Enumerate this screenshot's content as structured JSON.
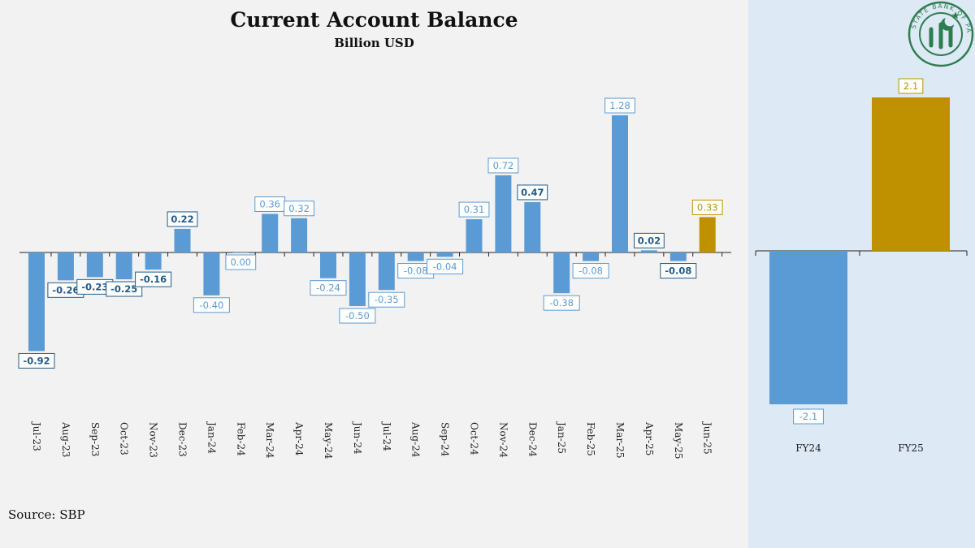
{
  "title": "Current Account Balance",
  "subtitle": "Billion USD",
  "source": "Source: SBP",
  "logo": {
    "name": "state-bank-of-pakistan-logo",
    "text": "STATE BANK OF PAKISTAN",
    "color": "#2e7d4f"
  },
  "colors": {
    "monthly_bar": "#5b9bd5",
    "highlight_bar": "#bf9000",
    "label_text": "#5b9bd5",
    "label_text_dark": "#1f5a8a",
    "axis": "#222222",
    "side_background": "#dde9f5"
  },
  "chart_data": [
    {
      "type": "bar",
      "title": "Current Account Balance",
      "subtitle": "Billion USD",
      "xlabel": "",
      "ylabel": "",
      "grid": false,
      "categories": [
        "Jul-23",
        "Aug-23",
        "Sep-23",
        "Oct-23",
        "Nov-23",
        "Dec-23",
        "Jan-24",
        "Feb-24",
        "Mar-24",
        "Apr-24",
        "May-24",
        "Jun-24",
        "Jul-24",
        "Aug-24",
        "Sep-24",
        "Oct-24",
        "Nov-24",
        "Dec-24",
        "Jan-25",
        "Feb-25",
        "Mar-25",
        "Apr-25",
        "May-25",
        "Jun-25"
      ],
      "values": [
        -0.92,
        -0.26,
        -0.23,
        -0.25,
        -0.16,
        0.22,
        -0.4,
        0.0,
        0.36,
        0.32,
        -0.24,
        -0.5,
        -0.35,
        -0.08,
        -0.04,
        0.31,
        0.72,
        0.47,
        -0.38,
        -0.08,
        1.28,
        0.02,
        -0.08,
        0.33
      ],
      "data_labels": [
        "-0.92",
        "-0.26",
        "-0.23",
        "-0.25",
        "-0.16",
        "0.22",
        "-0.40",
        "0.00",
        "0.36",
        "0.32",
        "-0.24",
        "-0.50",
        "-0.35",
        "-0.08",
        "-0.04",
        "0.31",
        "0.72",
        "0.47",
        "-0.38",
        "-0.08",
        "1.28",
        "0.02",
        "-0.08",
        "0.33"
      ],
      "bold_labels": [
        0,
        1,
        2,
        3,
        4,
        5,
        17,
        21,
        22
      ],
      "highlight_index": 23,
      "ylim": [
        -1.55,
        1.5
      ]
    },
    {
      "type": "bar",
      "title": "",
      "xlabel": "",
      "ylabel": "",
      "grid": false,
      "categories": [
        "FY24",
        "FY25"
      ],
      "values": [
        -2.1,
        2.1
      ],
      "data_labels": [
        "-2.1",
        "2.1"
      ],
      "highlight_index": 1,
      "ylim": [
        -3.1,
        2.8
      ]
    }
  ]
}
